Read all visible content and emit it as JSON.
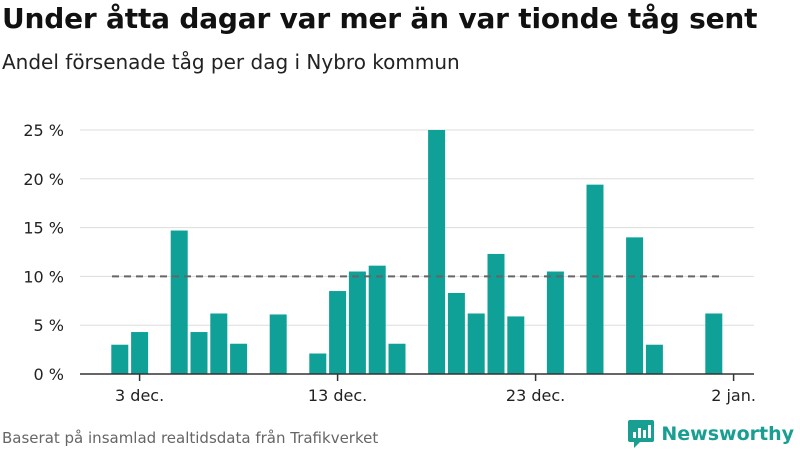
{
  "title": "Under åtta dagar var mer än var tionde tåg sent",
  "subtitle": "Andel försenade tåg per dag i Nybro kommun",
  "source": "Baserat på insamlad realtidsdata från Trafikverket",
  "brand": {
    "name": "Newsworthy",
    "icon": "newsworthy-logo-icon"
  },
  "colors": {
    "bar": "#0fa198",
    "reference": "#666666",
    "grid": "#dddddd",
    "axis": "#333333"
  },
  "chart_data": {
    "type": "bar",
    "categories": [
      "1 dec.",
      "2 dec.",
      "3 dec.",
      "4 dec.",
      "5 dec.",
      "6 dec.",
      "7 dec.",
      "8 dec.",
      "9 dec.",
      "10 dec.",
      "11 dec.",
      "12 dec.",
      "13 dec.",
      "14 dec.",
      "15 dec.",
      "16 dec.",
      "17 dec.",
      "18 dec.",
      "19 dec.",
      "20 dec.",
      "21 dec.",
      "22 dec.",
      "23 dec.",
      "24 dec.",
      "25 dec.",
      "26 dec.",
      "27 dec.",
      "28 dec.",
      "29 dec.",
      "30 dec.",
      "31 dec.",
      "1 jan."
    ],
    "values": [
      null,
      3,
      4.3,
      null,
      14.7,
      4.3,
      6.2,
      3.1,
      null,
      6.1,
      null,
      2.1,
      8.5,
      10.5,
      11.1,
      3.1,
      null,
      25,
      8.3,
      6.2,
      12.3,
      5.9,
      null,
      10.5,
      null,
      19.4,
      null,
      14,
      3,
      null,
      null,
      6.2
    ],
    "ylim": [
      0,
      25
    ],
    "yticks": [
      0,
      5,
      10,
      15,
      20,
      25
    ],
    "ytick_labels": [
      "0 %",
      "5 %",
      "10 %",
      "15 %",
      "20 %",
      "25 %"
    ],
    "xticks": [
      {
        "index": 2,
        "label": "3 dec."
      },
      {
        "index": 12,
        "label": "13 dec."
      },
      {
        "index": 22,
        "label": "23 dec."
      },
      {
        "index": 32,
        "label": "2 jan."
      }
    ],
    "reference_line": 10,
    "grid": true,
    "legend": "none"
  }
}
